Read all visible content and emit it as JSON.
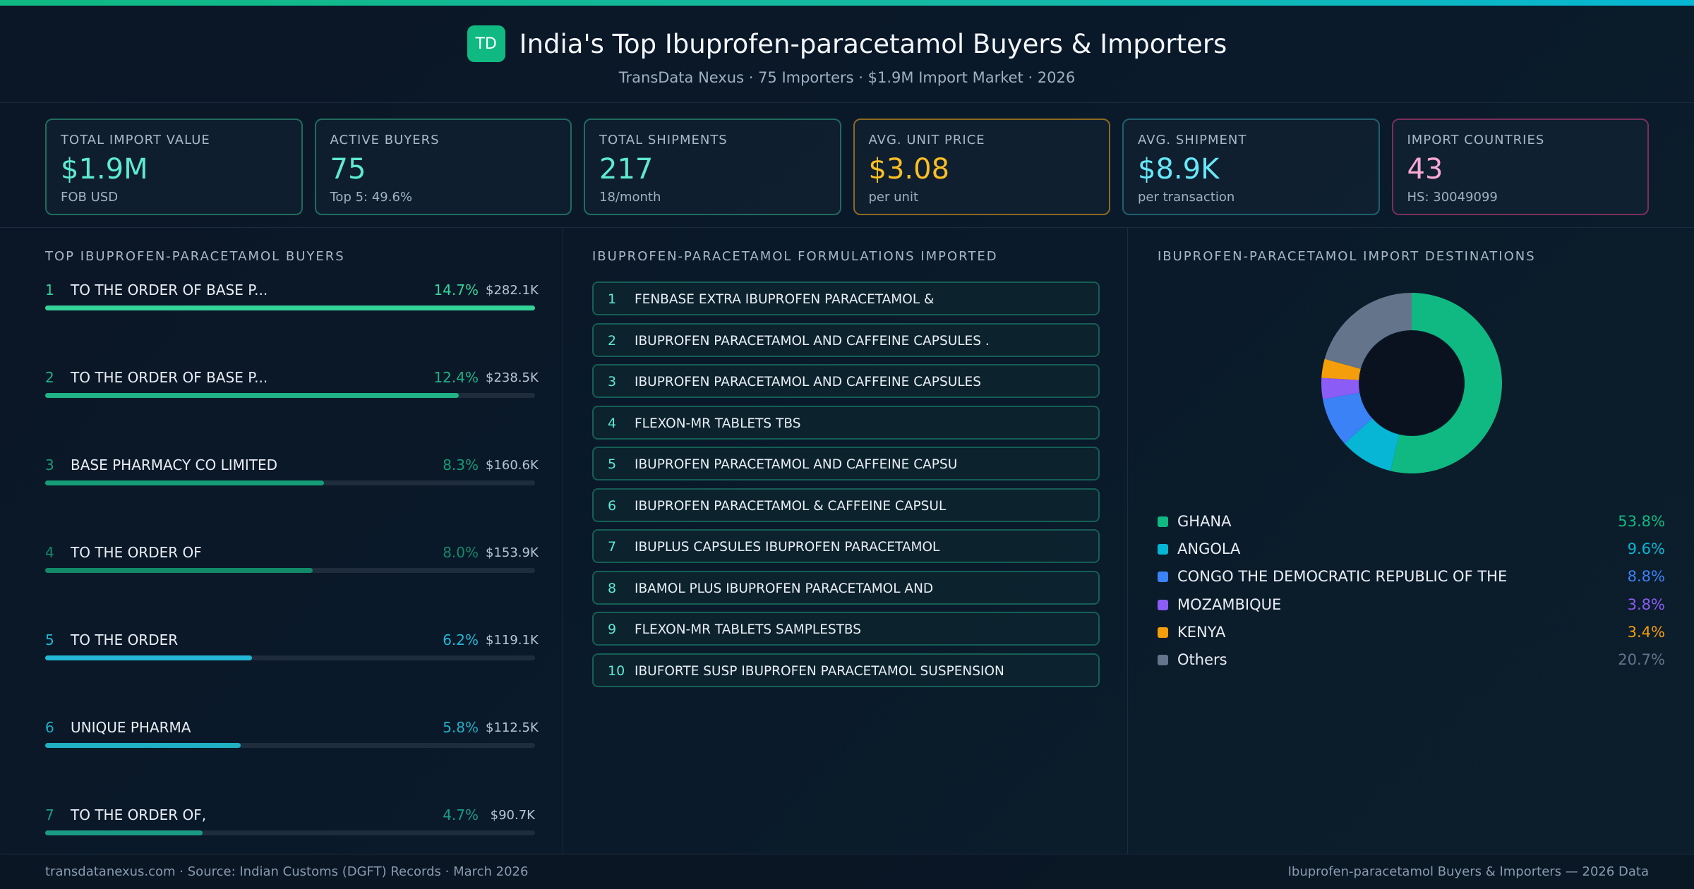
{
  "header": {
    "logo_text": "TD",
    "title": "India's Top Ibuprofen-paracetamol Buyers & Importers",
    "subtitle": "TransData Nexus · 75 Importers · $1.9M Import Market · 2026"
  },
  "kpis": [
    {
      "label": "TOTAL IMPORT VALUE",
      "value": "$1.9M",
      "sub": "FOB USD",
      "color": "#5eead4",
      "border": "#1f6b5c"
    },
    {
      "label": "ACTIVE BUYERS",
      "value": "75",
      "sub": "Top 5: 49.6%",
      "color": "#5eead4",
      "border": "#1f6b5c"
    },
    {
      "label": "TOTAL SHIPMENTS",
      "value": "217",
      "sub": "\u000118/month",
      "color": "#5eead4",
      "border": "#1f6b5c"
    },
    {
      "label": "AVG. UNIT PRICE",
      "value": "$3.08",
      "sub": "per unit",
      "color": "#fbbf24",
      "border": "#8a6a22"
    },
    {
      "label": "AVG. SHIPMENT",
      "value": "$8.9K",
      "sub": "per transaction",
      "color": "#67e8f9",
      "border": "#1f5f6e"
    },
    {
      "label": "IMPORT COUNTRIES",
      "value": "43",
      "sub": "HS: 30049099",
      "color": "#f9a8d4",
      "border": "#7a2f5a"
    }
  ],
  "buyers": {
    "title": "TOP IBUPROFEN-PARACETAMOL BUYERS",
    "items": [
      {
        "rank": "1",
        "name": "TO THE ORDER OF BASE P...",
        "pct": "14.7%",
        "value": "$282.1K",
        "share": 1.0,
        "color": "#34d399"
      },
      {
        "rank": "2",
        "name": "TO THE ORDER OF BASE P...",
        "pct": "12.4%",
        "value": "$238.5K",
        "share": 0.845,
        "color": "#1fb386"
      },
      {
        "rank": "3",
        "name": "BASE PHARMACY CO LIMITED",
        "pct": "8.3%",
        "value": "$160.6K",
        "share": 0.569,
        "color": "#169c76"
      },
      {
        "rank": "4",
        "name": "TO THE ORDER OF",
        "pct": "8.0%",
        "value": "$153.9K",
        "share": 0.546,
        "color": "#128a69"
      },
      {
        "rank": "5",
        "name": "TO THE ORDER",
        "pct": "6.2%",
        "value": "$119.1K",
        "share": 0.422,
        "color": "#22b8d6"
      },
      {
        "rank": "6",
        "name": "UNIQUE PHARMA",
        "pct": "5.8%",
        "value": "$112.5K",
        "share": 0.399,
        "color": "#1fb0c4"
      },
      {
        "rank": "7",
        "name": "TO THE ORDER OF,",
        "pct": "4.7%",
        "value": "$90.7K",
        "share": 0.322,
        "color": "#1b9a86"
      }
    ]
  },
  "products": {
    "title": "IBUPROFEN-PARACETAMOL FORMULATIONS IMPORTED",
    "items": [
      {
        "num": "1",
        "name": "FENBASE EXTRA IBUPROFEN PARACETAMOL &"
      },
      {
        "num": "2",
        "name": "IBUPROFEN PARACETAMOL AND CAFFEINE CAPSULES ."
      },
      {
        "num": "3",
        "name": "IBUPROFEN PARACETAMOL AND CAFFEINE CAPSULES"
      },
      {
        "num": "4",
        "name": "FLEXON-MR TABLETS TBS"
      },
      {
        "num": "5",
        "name": "IBUPROFEN PARACETAMOL AND CAFFEINE CAPSU"
      },
      {
        "num": "6",
        "name": "IBUPROFEN PARACETAMOL & CAFFEINE CAPSUL"
      },
      {
        "num": "7",
        "name": "IBUPLUS CAPSULES IBUPROFEN PARACETAMOL"
      },
      {
        "num": "8",
        "name": "IBAMOL PLUS IBUPROFEN PARACETAMOL AND"
      },
      {
        "num": "9",
        "name": "FLEXON-MR TABLETS SAMPLESTBS"
      },
      {
        "num": "10",
        "name": "IBUFORTE SUSP IBUPROFEN PARACETAMOL SUSPENSION"
      }
    ]
  },
  "destinations": {
    "title": "IBUPROFEN-PARACETAMOL IMPORT DESTINATIONS",
    "items": [
      {
        "name": "GHANA",
        "pct": "53.8%",
        "value": 53.8,
        "color": "#10b981"
      },
      {
        "name": "ANGOLA",
        "pct": "9.6%",
        "value": 9.6,
        "color": "#06b6d4"
      },
      {
        "name": "CONGO THE DEMOCRATIC REPUBLIC OF THE",
        "pct": "8.8%",
        "value": 8.8,
        "color": "#3b82f6"
      },
      {
        "name": "MOZAMBIQUE",
        "pct": "3.8%",
        "value": 3.8,
        "color": "#8b5cf6"
      },
      {
        "name": "KENYA",
        "pct": "3.4%",
        "value": 3.4,
        "color": "#f59e0b"
      },
      {
        "name": "Others",
        "pct": "20.7%",
        "value": 20.7,
        "color": "#64748b"
      }
    ]
  },
  "chart_data": {
    "type": "pie",
    "categories": [
      "GHANA",
      "ANGOLA",
      "CONGO THE DEMOCRATIC REPUBLIC OF THE",
      "MOZAMBIQUE",
      "KENYA",
      "Others"
    ],
    "values": [
      53.8,
      9.6,
      8.8,
      3.8,
      3.4,
      20.7
    ],
    "title": "IBUPROFEN-PARACETAMOL IMPORT DESTINATIONS"
  },
  "footer": {
    "left": "transdatanexus.com · Source: Indian Customs (DGFT) Records · March 2026",
    "right": "Ibuprofen-paracetamol Buyers & Importers — 2026 Data"
  }
}
